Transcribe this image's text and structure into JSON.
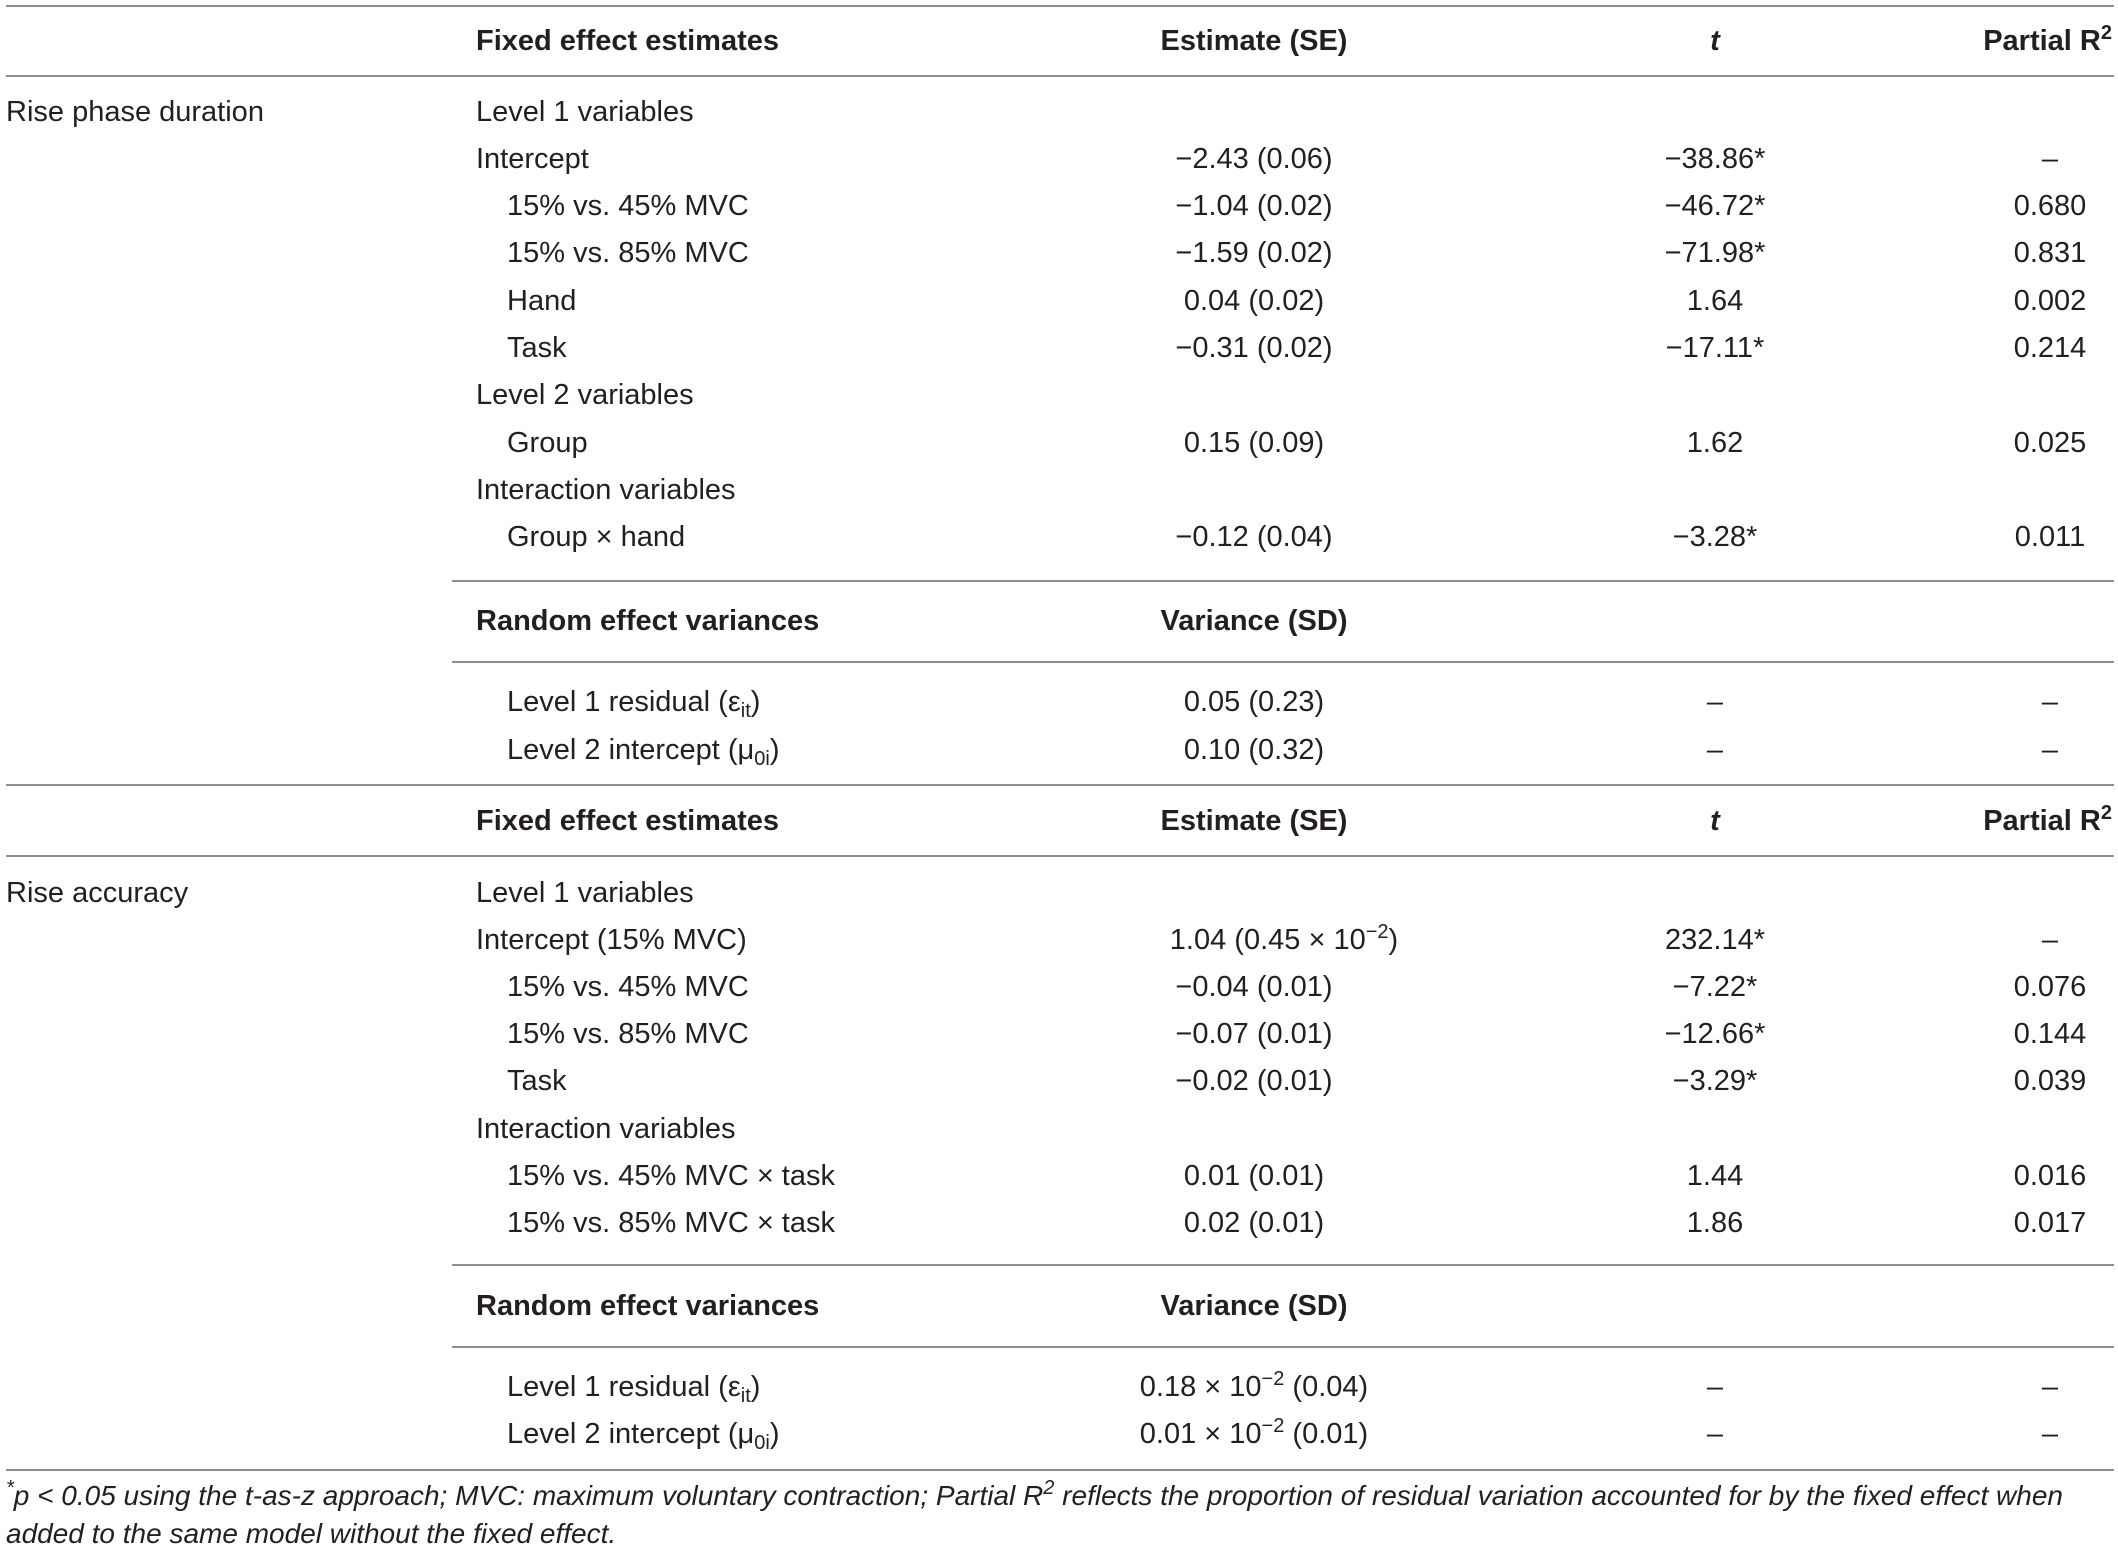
{
  "sections": [
    {
      "label": "Rise phase duration",
      "fixed_header": {
        "title": "Fixed effect estimates",
        "estimate": "Estimate (SE)",
        "t": "t",
        "r2": "Partial R",
        "r2_sup": "2"
      },
      "fixed_rows": [
        {
          "name": "Level 1 variables",
          "estimate": "",
          "t": "",
          "r2": ""
        },
        {
          "name": "Intercept",
          "estimate": "−2.43 (0.06)",
          "t": "−38.86*",
          "r2": "–"
        },
        {
          "name": "15% vs. 45% MVC",
          "estimate": "−1.04 (0.02)",
          "t": "−46.72*",
          "r2": "0.680"
        },
        {
          "name": "15% vs. 85% MVC",
          "estimate": "−1.59 (0.02)",
          "t": "−71.98*",
          "r2": "0.831"
        },
        {
          "name": "Hand",
          "estimate": "0.04 (0.02)",
          "t": "1.64",
          "r2": "0.002"
        },
        {
          "name": "Task",
          "estimate": "−0.31 (0.02)",
          "t": "−17.11*",
          "r2": "0.214"
        },
        {
          "name": "Level 2 variables",
          "estimate": "",
          "t": "",
          "r2": ""
        },
        {
          "name": "Group",
          "estimate": "0.15 (0.09)",
          "t": "1.62",
          "r2": "0.025"
        },
        {
          "name": "Interaction variables",
          "estimate": "",
          "t": "",
          "r2": ""
        },
        {
          "name": "Group × hand",
          "estimate": "−0.12 (0.04)",
          "t": "−3.28*",
          "r2": "0.011"
        }
      ],
      "random_header": {
        "title": "Random effect variances",
        "variance": "Variance (SD)"
      },
      "random_rows": [
        {
          "name": "Level 1 residual (ε",
          "sub": "it",
          "close": ")",
          "variance": "0.05 (0.23)",
          "t": "–",
          "r2": "–"
        },
        {
          "name": "Level 2 intercept (μ",
          "sub": "0i",
          "close": ")",
          "variance": "0.10 (0.32)",
          "t": "–",
          "r2": "–"
        }
      ]
    },
    {
      "label": "Rise accuracy",
      "fixed_header": {
        "title": "Fixed effect estimates",
        "estimate": "Estimate (SE)",
        "t": "t",
        "r2": "Partial R",
        "r2_sup": "2"
      },
      "fixed_rows": [
        {
          "name": "Level 1 variables",
          "estimate": "",
          "t": "",
          "r2": ""
        },
        {
          "name": "Intercept (15% MVC)",
          "estimate": "1.04 (0.45 × 10",
          "estimate_sup": "−2",
          "estimate_tail": ")",
          "t": "232.14*",
          "r2": "–"
        },
        {
          "name": "15% vs. 45% MVC",
          "estimate": "−0.04 (0.01)",
          "t": "−7.22*",
          "r2": "0.076"
        },
        {
          "name": "15% vs. 85% MVC",
          "estimate": "−0.07 (0.01)",
          "t": "−12.66*",
          "r2": "0.144"
        },
        {
          "name": "Task",
          "estimate": "−0.02 (0.01)",
          "t": "−3.29*",
          "r2": "0.039"
        },
        {
          "name": "Interaction variables",
          "estimate": "",
          "t": "",
          "r2": ""
        },
        {
          "name": "15% vs. 45% MVC × task",
          "estimate": "0.01 (0.01)",
          "t": "1.44",
          "r2": "0.016"
        },
        {
          "name": "15% vs. 85% MVC × task",
          "estimate": "0.02 (0.01)",
          "t": "1.86",
          "r2": "0.017"
        }
      ],
      "random_header": {
        "title": "Random effect variances",
        "variance": "Variance (SD)"
      },
      "random_rows": [
        {
          "name": "Level 1 residual (ε",
          "sub": "it",
          "close": ")",
          "variance": "0.18 × 10",
          "variance_sup": "−2",
          "variance_tail": " (0.04)",
          "t": "–",
          "r2": "–"
        },
        {
          "name": "Level 2 intercept (μ",
          "sub": "0i",
          "close": ")",
          "variance": "0.01 × 10",
          "variance_sup": "−2",
          "variance_tail": " (0.01)",
          "t": "–",
          "r2": "–"
        }
      ]
    }
  ],
  "footnote": {
    "prefix": "*",
    "p": "p",
    "text1": " < 0.05 using the t-as-z approach; MVC: maximum voluntary contraction; Partial R",
    "sup": "2",
    "text2": " reflects the proportion of residual variation accounted for by the fixed effect when added to the same model without the fixed effect."
  }
}
